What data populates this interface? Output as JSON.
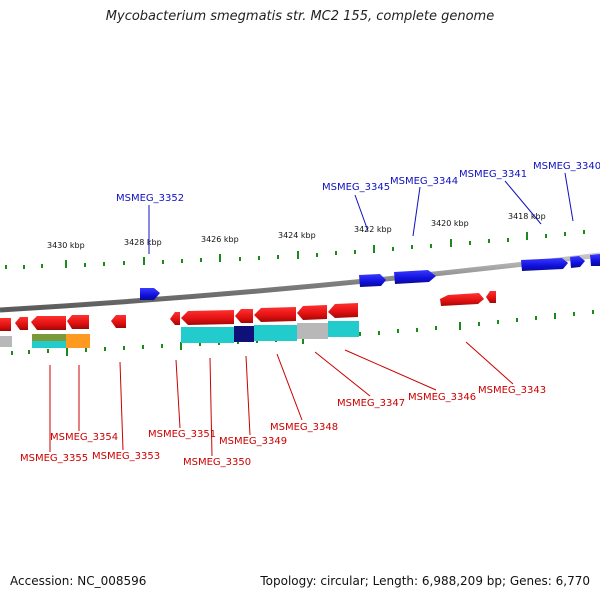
{
  "title": "Mycobacterium smegmatis str. MC2 155, complete genome",
  "footer": {
    "accession": "Accession: NC_008596",
    "summary": "Topology: circular; Length: 6,988,209 bp; Genes: 6,770"
  },
  "colors": {
    "forward": "#1a1af0",
    "reverse": "#ee1111",
    "forward_label": "#1010c0",
    "reverse_label": "#cc0000",
    "tick": "#1a8a1a",
    "backbone": "#8a8a8a",
    "cyan": "#22cccc",
    "navy": "#10107a",
    "gray": "#b8b8b8",
    "orange": "#ff9a20",
    "olive": "#7a9a3a"
  },
  "scale_labels": [
    "3430 kbp",
    "3428 kbp",
    "3426 kbp",
    "3424 kbp",
    "3422 kbp",
    "3420 kbp",
    "3418 kbp"
  ],
  "forward_genes": [
    "MSMEG_3352",
    "MSMEG_3345",
    "MSMEG_3344",
    "MSMEG_3341",
    "MSMEG_3340"
  ],
  "reverse_genes": [
    "MSMEG_3355",
    "MSMEG_3354",
    "MSMEG_3353",
    "MSMEG_3351",
    "MSMEG_3350",
    "MSMEG_3349",
    "MSMEG_3348",
    "MSMEG_3347",
    "MSMEG_3346",
    "MSMEG_3343"
  ]
}
